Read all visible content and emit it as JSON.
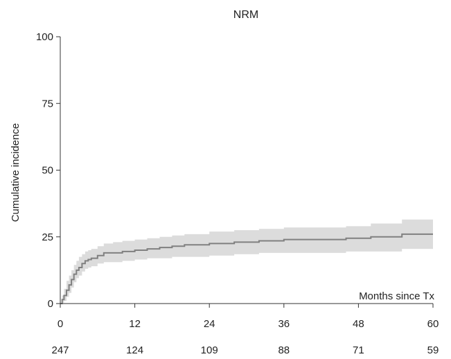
{
  "chart_data": {
    "type": "line",
    "title": "NRM",
    "ylabel": "Cumulative incidence",
    "xlabel": "Months since Tx",
    "xlim": [
      0,
      60
    ],
    "ylim": [
      0,
      100
    ],
    "x_ticks": [
      0,
      12,
      24,
      36,
      48,
      60
    ],
    "y_ticks": [
      0,
      25,
      50,
      75,
      100
    ],
    "grid": false,
    "series": [
      {
        "color": "#808080",
        "band_color": "#dcdcdc",
        "step": true,
        "x": [
          0,
          0.3,
          0.6,
          1.0,
          1.4,
          1.8,
          2.2,
          2.6,
          3.0,
          3.5,
          4.0,
          4.5,
          5.0,
          6.0,
          7.0,
          8.5,
          10.0,
          12.0,
          14.0,
          16.0,
          18.0,
          20.0,
          24.0,
          28.0,
          32.0,
          36.0,
          40.0,
          44.0,
          46.0,
          50.0,
          55.0,
          60.0
        ],
        "y": [
          0,
          1.5,
          3.0,
          5.0,
          7.0,
          9.0,
          11.0,
          12.5,
          13.5,
          15.0,
          16.0,
          16.5,
          17.0,
          18.0,
          19.0,
          19.0,
          19.5,
          20.0,
          20.5,
          21.0,
          21.5,
          22.0,
          22.5,
          23.0,
          23.5,
          24.0,
          24.0,
          24.0,
          24.5,
          25.0,
          26.0,
          26.0
        ],
        "ci_lower": [
          0,
          0.3,
          1.0,
          2.5,
          4.0,
          6.0,
          8.0,
          9.5,
          10.5,
          12.0,
          13.0,
          13.5,
          14.0,
          15.0,
          15.5,
          15.5,
          16.0,
          16.5,
          17.0,
          17.0,
          17.5,
          17.5,
          18.0,
          18.5,
          19.0,
          19.0,
          19.0,
          19.0,
          19.5,
          19.5,
          20.5,
          20.5
        ],
        "ci_upper": [
          0,
          3.0,
          5.5,
          8.5,
          10.5,
          12.5,
          14.5,
          16.0,
          17.5,
          18.5,
          19.5,
          20.0,
          20.5,
          21.5,
          22.5,
          23.0,
          23.5,
          24.0,
          24.5,
          25.0,
          25.5,
          26.0,
          27.0,
          27.5,
          28.0,
          28.5,
          28.5,
          28.5,
          29.0,
          30.0,
          31.5,
          31.5
        ]
      }
    ],
    "number_at_risk": [
      "247",
      "124",
      "109",
      "88",
      "71",
      "59"
    ]
  }
}
